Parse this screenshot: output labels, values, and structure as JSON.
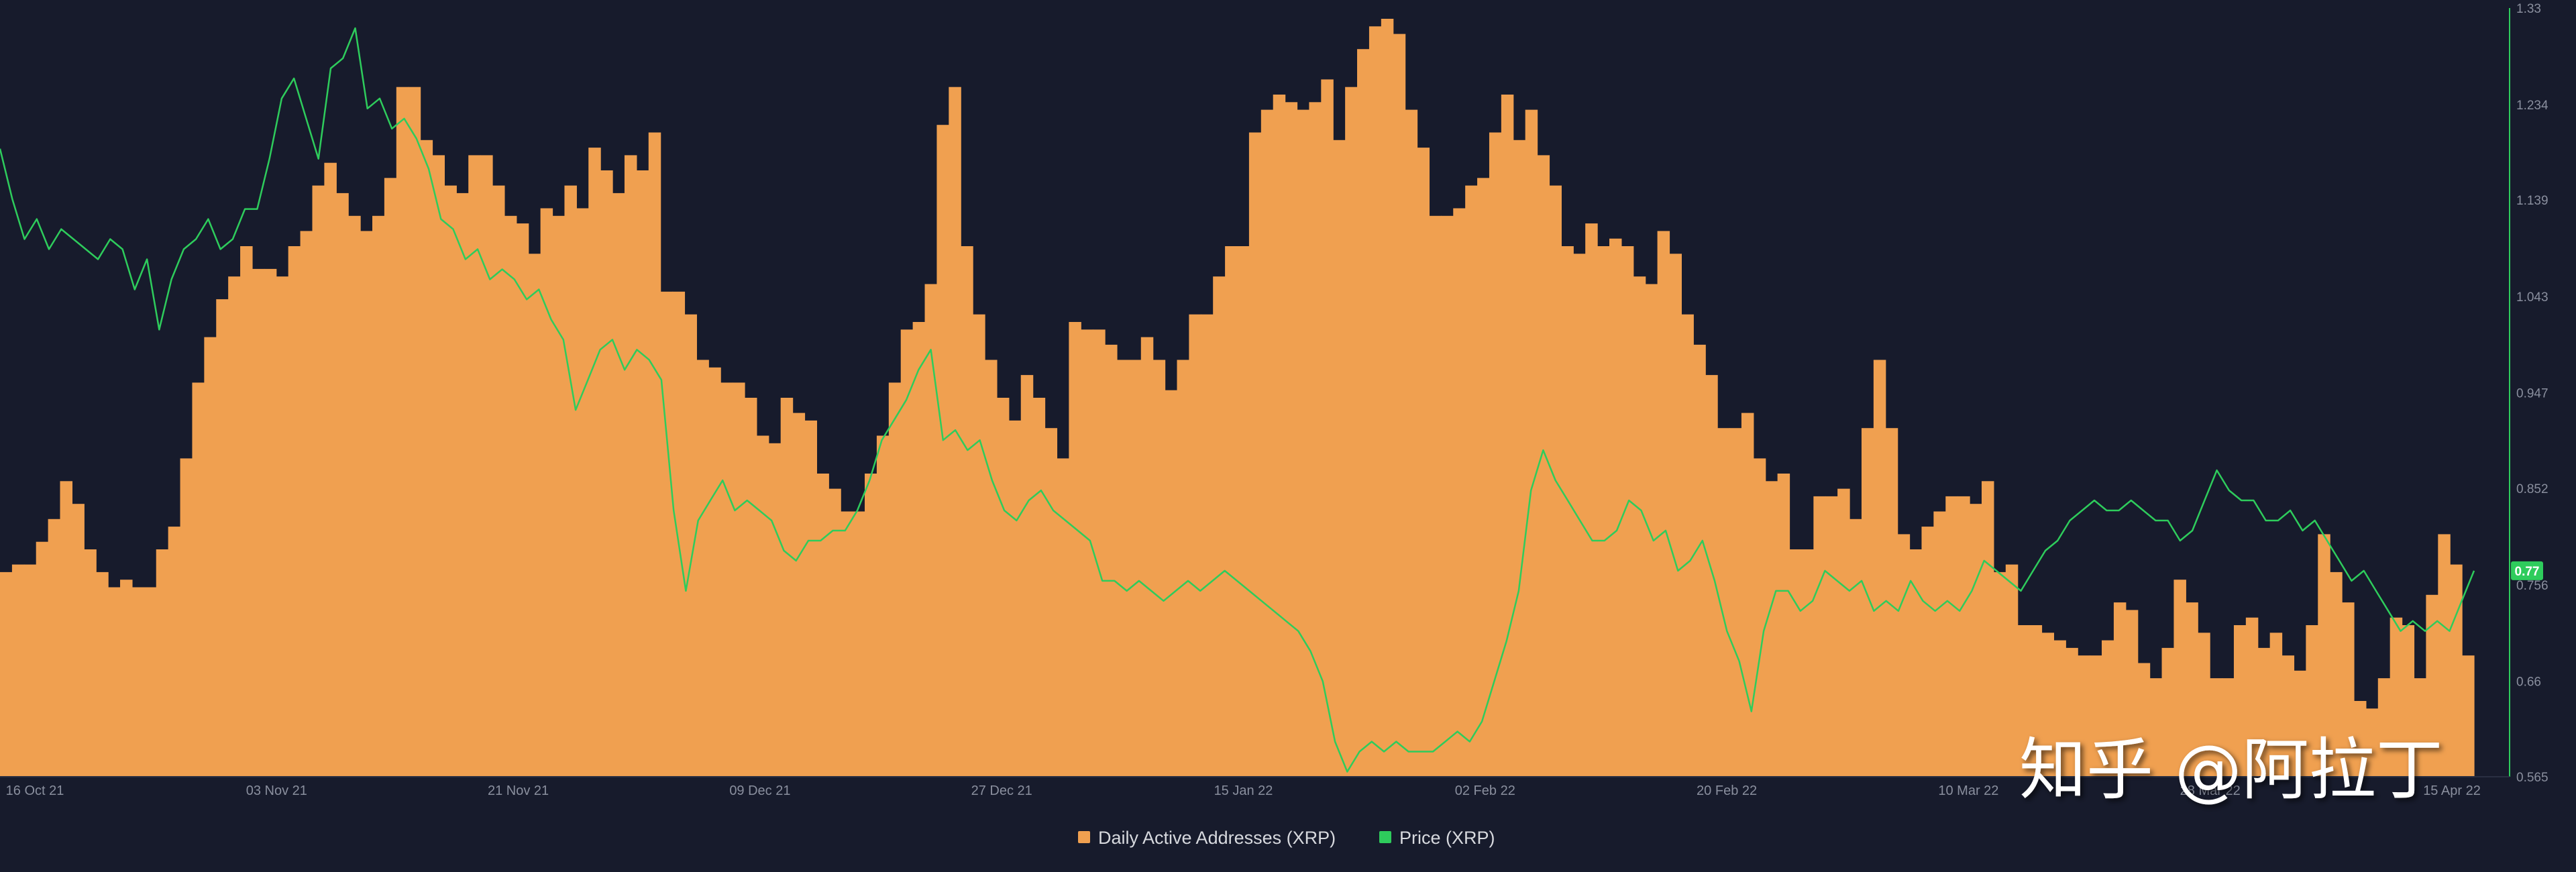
{
  "chart_data": {
    "type": "bar+line",
    "title": "",
    "xlabel": "",
    "ylabel": "",
    "x_tick_labels": [
      "16 Oct 21",
      "03 Nov 21",
      "21 Nov 21",
      "09 Dec 21",
      "27 Dec 21",
      "15 Jan 22",
      "02 Feb 22",
      "20 Feb 22",
      "10 Mar 22",
      "28 Mar 22",
      "15 Apr 22"
    ],
    "x_range": [
      "2021-10-16",
      "2022-04-15"
    ],
    "right_axis": {
      "ticks": [
        "1.33",
        "1.234",
        "1.139",
        "1.043",
        "0.947",
        "0.852",
        "0.756",
        "0.66",
        "0.565"
      ],
      "ylim": [
        0.565,
        1.33
      ],
      "current_value": 0.77,
      "current_label": "0.77"
    },
    "grid": false,
    "legend_position": "bottom-center",
    "series": [
      {
        "name": "Daily Active Addresses (XRP)",
        "type": "bar",
        "color": "#f0a050",
        "axis": "hidden",
        "relative_values": [
          0.27,
          0.28,
          0.28,
          0.31,
          0.34,
          0.39,
          0.36,
          0.3,
          0.27,
          0.25,
          0.26,
          0.25,
          0.25,
          0.3,
          0.33,
          0.42,
          0.52,
          0.58,
          0.63,
          0.66,
          0.7,
          0.67,
          0.67,
          0.66,
          0.7,
          0.72,
          0.78,
          0.81,
          0.77,
          0.74,
          0.72,
          0.74,
          0.79,
          0.91,
          0.91,
          0.84,
          0.82,
          0.78,
          0.77,
          0.82,
          0.82,
          0.78,
          0.74,
          0.73,
          0.69,
          0.75,
          0.74,
          0.78,
          0.75,
          0.83,
          0.8,
          0.77,
          0.82,
          0.8,
          0.85,
          0.64,
          0.64,
          0.61,
          0.55,
          0.54,
          0.52,
          0.52,
          0.5,
          0.45,
          0.44,
          0.5,
          0.48,
          0.47,
          0.4,
          0.38,
          0.35,
          0.35,
          0.4,
          0.45,
          0.52,
          0.59,
          0.6,
          0.65,
          0.86,
          0.91,
          0.7,
          0.61,
          0.55,
          0.5,
          0.47,
          0.53,
          0.5,
          0.46,
          0.42,
          0.6,
          0.59,
          0.59,
          0.57,
          0.55,
          0.55,
          0.58,
          0.55,
          0.51,
          0.55,
          0.61,
          0.61,
          0.66,
          0.7,
          0.7,
          0.85,
          0.88,
          0.9,
          0.89,
          0.88,
          0.89,
          0.92,
          0.84,
          0.91,
          0.96,
          0.99,
          1.0,
          0.98,
          0.88,
          0.83,
          0.74,
          0.74,
          0.75,
          0.78,
          0.79,
          0.85,
          0.9,
          0.84,
          0.88,
          0.82,
          0.78,
          0.7,
          0.69,
          0.73,
          0.7,
          0.71,
          0.7,
          0.66,
          0.65,
          0.72,
          0.69,
          0.61,
          0.57,
          0.53,
          0.46,
          0.46,
          0.48,
          0.42,
          0.39,
          0.4,
          0.3,
          0.3,
          0.37,
          0.37,
          0.38,
          0.34,
          0.46,
          0.55,
          0.46,
          0.32,
          0.3,
          0.33,
          0.35,
          0.37,
          0.37,
          0.36,
          0.39,
          0.27,
          0.28,
          0.2,
          0.2,
          0.19,
          0.18,
          0.17,
          0.16,
          0.16,
          0.18,
          0.23,
          0.22,
          0.15,
          0.13,
          0.17,
          0.26,
          0.23,
          0.19,
          0.13,
          0.13,
          0.2,
          0.21,
          0.17,
          0.19,
          0.16,
          0.14,
          0.2,
          0.32,
          0.27,
          0.23,
          0.1,
          0.09,
          0.13,
          0.21,
          0.2,
          0.13,
          0.24,
          0.32,
          0.28,
          0.16
        ]
      },
      {
        "name": "Price (XRP)",
        "type": "line",
        "color": "#2ecc5c",
        "axis": "right",
        "values": [
          1.19,
          1.14,
          1.1,
          1.12,
          1.09,
          1.11,
          1.1,
          1.09,
          1.08,
          1.1,
          1.09,
          1.05,
          1.08,
          1.01,
          1.06,
          1.09,
          1.1,
          1.12,
          1.09,
          1.1,
          1.13,
          1.13,
          1.18,
          1.24,
          1.26,
          1.22,
          1.18,
          1.27,
          1.28,
          1.31,
          1.23,
          1.24,
          1.21,
          1.22,
          1.2,
          1.17,
          1.12,
          1.11,
          1.08,
          1.09,
          1.06,
          1.07,
          1.06,
          1.04,
          1.05,
          1.02,
          1.0,
          0.93,
          0.96,
          0.99,
          1.0,
          0.97,
          0.99,
          0.98,
          0.96,
          0.83,
          0.75,
          0.82,
          0.84,
          0.86,
          0.83,
          0.84,
          0.83,
          0.82,
          0.79,
          0.78,
          0.8,
          0.8,
          0.81,
          0.81,
          0.83,
          0.86,
          0.9,
          0.92,
          0.94,
          0.97,
          0.99,
          0.9,
          0.91,
          0.89,
          0.9,
          0.86,
          0.83,
          0.82,
          0.84,
          0.85,
          0.83,
          0.82,
          0.81,
          0.8,
          0.76,
          0.76,
          0.75,
          0.76,
          0.75,
          0.74,
          0.75,
          0.76,
          0.75,
          0.76,
          0.77,
          0.76,
          0.75,
          0.74,
          0.73,
          0.72,
          0.71,
          0.69,
          0.66,
          0.6,
          0.57,
          0.59,
          0.6,
          0.59,
          0.6,
          0.59,
          0.59,
          0.59,
          0.6,
          0.61,
          0.6,
          0.62,
          0.66,
          0.7,
          0.75,
          0.85,
          0.89,
          0.86,
          0.84,
          0.82,
          0.8,
          0.8,
          0.81,
          0.84,
          0.83,
          0.8,
          0.81,
          0.77,
          0.78,
          0.8,
          0.76,
          0.71,
          0.68,
          0.63,
          0.71,
          0.75,
          0.75,
          0.73,
          0.74,
          0.77,
          0.76,
          0.75,
          0.76,
          0.73,
          0.74,
          0.73,
          0.76,
          0.74,
          0.73,
          0.74,
          0.73,
          0.75,
          0.78,
          0.77,
          0.76,
          0.75,
          0.77,
          0.79,
          0.8,
          0.82,
          0.83,
          0.84,
          0.83,
          0.83,
          0.84,
          0.83,
          0.82,
          0.82,
          0.8,
          0.81,
          0.84,
          0.87,
          0.85,
          0.84,
          0.84,
          0.82,
          0.82,
          0.83,
          0.81,
          0.82,
          0.8,
          0.78,
          0.76,
          0.77,
          0.75,
          0.73,
          0.71,
          0.72,
          0.71,
          0.72,
          0.71,
          0.74,
          0.77
        ]
      }
    ]
  },
  "watermark": "知乎 @阿拉丁"
}
